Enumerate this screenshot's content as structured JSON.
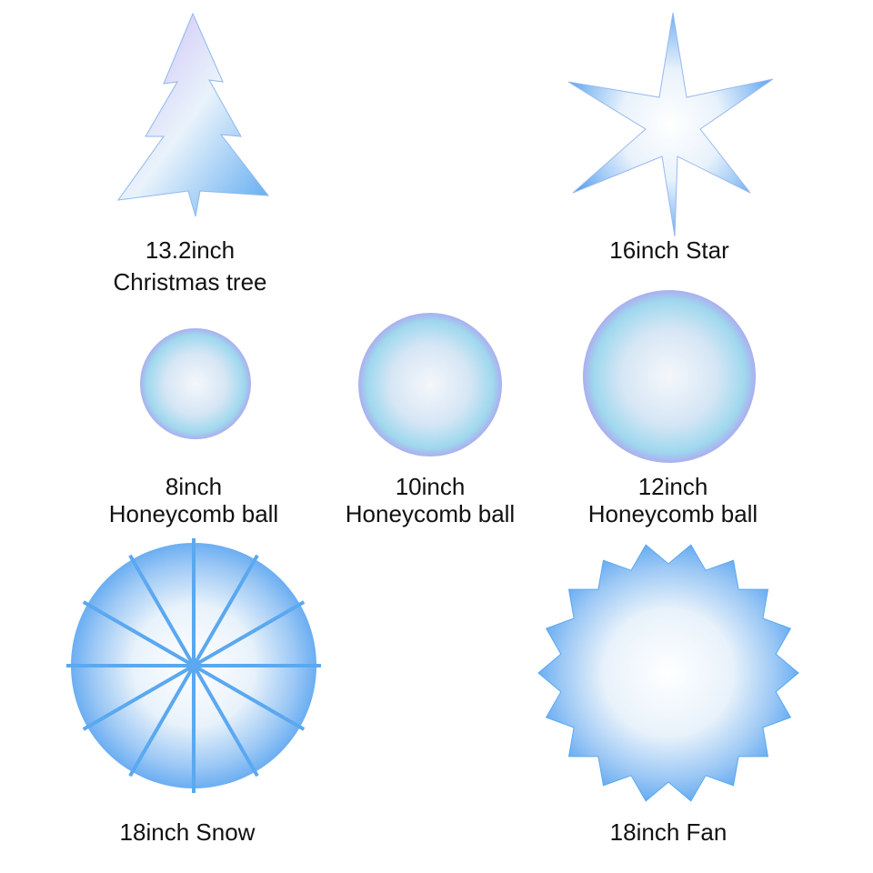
{
  "products": [
    {
      "id": "tree",
      "lines": [
        "13.2inch",
        "Christmas tree"
      ]
    },
    {
      "id": "star",
      "lines": [
        "16inch Star"
      ]
    },
    {
      "id": "ball8",
      "lines": [
        "8inch",
        "Honeycomb ball"
      ]
    },
    {
      "id": "ball10",
      "lines": [
        "10inch",
        "Honeycomb ball"
      ]
    },
    {
      "id": "ball12",
      "lines": [
        "12inch",
        "Honeycomb ball"
      ]
    },
    {
      "id": "snow",
      "lines": [
        "18inch Snow"
      ]
    },
    {
      "id": "fan",
      "lines": [
        "18inch Fan"
      ]
    }
  ],
  "colors": {
    "iridescent_blue": "#5aa8f0",
    "iridescent_purple": "#b48cf0",
    "iridescent_cyan": "#7ee0f0",
    "white": "#ffffff"
  }
}
